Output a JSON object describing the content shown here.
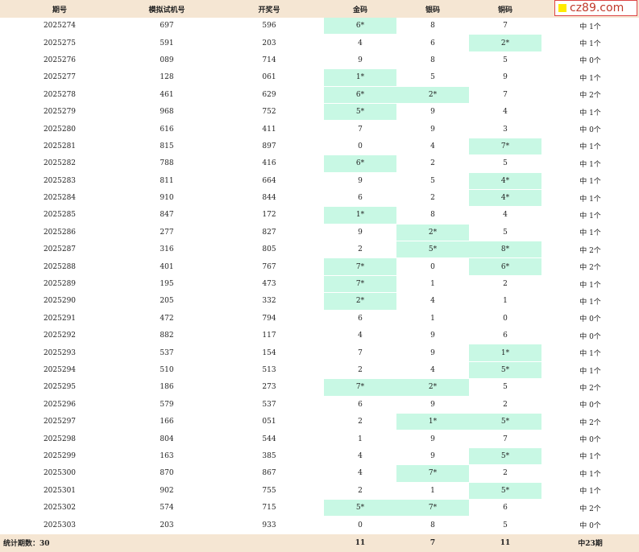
{
  "headers": [
    "期号",
    "模拟试机号",
    "开奖号",
    "金码",
    "银码",
    "铜码",
    ""
  ],
  "rows": [
    {
      "issue": "2025274",
      "sim": "697",
      "draw": "596",
      "gold": "6*",
      "silver": "8",
      "copper": "7",
      "hits": "中 1个",
      "h": [
        1,
        0,
        0
      ]
    },
    {
      "issue": "2025275",
      "sim": "591",
      "draw": "203",
      "gold": "4",
      "silver": "6",
      "copper": "2*",
      "hits": "中 1个",
      "h": [
        0,
        0,
        1
      ]
    },
    {
      "issue": "2025276",
      "sim": "089",
      "draw": "714",
      "gold": "9",
      "silver": "8",
      "copper": "5",
      "hits": "中 0个",
      "h": [
        0,
        0,
        0
      ]
    },
    {
      "issue": "2025277",
      "sim": "128",
      "draw": "061",
      "gold": "1*",
      "silver": "5",
      "copper": "9",
      "hits": "中 1个",
      "h": [
        1,
        0,
        0
      ]
    },
    {
      "issue": "2025278",
      "sim": "461",
      "draw": "629",
      "gold": "6*",
      "silver": "2*",
      "copper": "7",
      "hits": "中 2个",
      "h": [
        1,
        1,
        0
      ]
    },
    {
      "issue": "2025279",
      "sim": "968",
      "draw": "752",
      "gold": "5*",
      "silver": "9",
      "copper": "4",
      "hits": "中 1个",
      "h": [
        1,
        0,
        0
      ]
    },
    {
      "issue": "2025280",
      "sim": "616",
      "draw": "411",
      "gold": "7",
      "silver": "9",
      "copper": "3",
      "hits": "中 0个",
      "h": [
        0,
        0,
        0
      ]
    },
    {
      "issue": "2025281",
      "sim": "815",
      "draw": "897",
      "gold": "0",
      "silver": "4",
      "copper": "7*",
      "hits": "中 1个",
      "h": [
        0,
        0,
        1
      ]
    },
    {
      "issue": "2025282",
      "sim": "788",
      "draw": "416",
      "gold": "6*",
      "silver": "2",
      "copper": "5",
      "hits": "中 1个",
      "h": [
        1,
        0,
        0
      ]
    },
    {
      "issue": "2025283",
      "sim": "811",
      "draw": "664",
      "gold": "9",
      "silver": "5",
      "copper": "4*",
      "hits": "中 1个",
      "h": [
        0,
        0,
        1
      ]
    },
    {
      "issue": "2025284",
      "sim": "910",
      "draw": "844",
      "gold": "6",
      "silver": "2",
      "copper": "4*",
      "hits": "中 1个",
      "h": [
        0,
        0,
        1
      ]
    },
    {
      "issue": "2025285",
      "sim": "847",
      "draw": "172",
      "gold": "1*",
      "silver": "8",
      "copper": "4",
      "hits": "中 1个",
      "h": [
        1,
        0,
        0
      ]
    },
    {
      "issue": "2025286",
      "sim": "277",
      "draw": "827",
      "gold": "9",
      "silver": "2*",
      "copper": "5",
      "hits": "中 1个",
      "h": [
        0,
        1,
        0
      ]
    },
    {
      "issue": "2025287",
      "sim": "316",
      "draw": "805",
      "gold": "2",
      "silver": "5*",
      "copper": "8*",
      "hits": "中 2个",
      "h": [
        0,
        1,
        1
      ]
    },
    {
      "issue": "2025288",
      "sim": "401",
      "draw": "767",
      "gold": "7*",
      "silver": "0",
      "copper": "6*",
      "hits": "中 2个",
      "h": [
        1,
        0,
        1
      ]
    },
    {
      "issue": "2025289",
      "sim": "195",
      "draw": "473",
      "gold": "7*",
      "silver": "1",
      "copper": "2",
      "hits": "中 1个",
      "h": [
        1,
        0,
        0
      ]
    },
    {
      "issue": "2025290",
      "sim": "205",
      "draw": "332",
      "gold": "2*",
      "silver": "4",
      "copper": "1",
      "hits": "中 1个",
      "h": [
        1,
        0,
        0
      ]
    },
    {
      "issue": "2025291",
      "sim": "472",
      "draw": "794",
      "gold": "6",
      "silver": "1",
      "copper": "0",
      "hits": "中 0个",
      "h": [
        0,
        0,
        0
      ]
    },
    {
      "issue": "2025292",
      "sim": "882",
      "draw": "117",
      "gold": "4",
      "silver": "9",
      "copper": "6",
      "hits": "中 0个",
      "h": [
        0,
        0,
        0
      ]
    },
    {
      "issue": "2025293",
      "sim": "537",
      "draw": "154",
      "gold": "7",
      "silver": "9",
      "copper": "1*",
      "hits": "中 1个",
      "h": [
        0,
        0,
        1
      ]
    },
    {
      "issue": "2025294",
      "sim": "510",
      "draw": "513",
      "gold": "2",
      "silver": "4",
      "copper": "5*",
      "hits": "中 1个",
      "h": [
        0,
        0,
        1
      ]
    },
    {
      "issue": "2025295",
      "sim": "186",
      "draw": "273",
      "gold": "7*",
      "silver": "2*",
      "copper": "5",
      "hits": "中 2个",
      "h": [
        1,
        1,
        0
      ]
    },
    {
      "issue": "2025296",
      "sim": "579",
      "draw": "537",
      "gold": "6",
      "silver": "9",
      "copper": "2",
      "hits": "中 0个",
      "h": [
        0,
        0,
        0
      ]
    },
    {
      "issue": "2025297",
      "sim": "166",
      "draw": "051",
      "gold": "2",
      "silver": "1*",
      "copper": "5*",
      "hits": "中 2个",
      "h": [
        0,
        1,
        1
      ]
    },
    {
      "issue": "2025298",
      "sim": "804",
      "draw": "544",
      "gold": "1",
      "silver": "9",
      "copper": "7",
      "hits": "中 0个",
      "h": [
        0,
        0,
        0
      ]
    },
    {
      "issue": "2025299",
      "sim": "163",
      "draw": "385",
      "gold": "4",
      "silver": "9",
      "copper": "5*",
      "hits": "中 1个",
      "h": [
        0,
        0,
        1
      ]
    },
    {
      "issue": "2025300",
      "sim": "870",
      "draw": "867",
      "gold": "4",
      "silver": "7*",
      "copper": "2",
      "hits": "中 1个",
      "h": [
        0,
        1,
        0
      ]
    },
    {
      "issue": "2025301",
      "sim": "902",
      "draw": "755",
      "gold": "2",
      "silver": "1",
      "copper": "5*",
      "hits": "中 1个",
      "h": [
        0,
        0,
        1
      ]
    },
    {
      "issue": "2025302",
      "sim": "574",
      "draw": "715",
      "gold": "5*",
      "silver": "7*",
      "copper": "6",
      "hits": "中 2个",
      "h": [
        1,
        1,
        0
      ]
    },
    {
      "issue": "2025303",
      "sim": "203",
      "draw": "933",
      "gold": "0",
      "silver": "8",
      "copper": "5",
      "hits": "中 0个",
      "h": [
        0,
        0,
        0
      ]
    }
  ],
  "footer": {
    "label": "统计期数：30",
    "gold": "11",
    "silver": "7",
    "copper": "11",
    "total": "中23期"
  },
  "brand": {
    "text": "cz89.com"
  },
  "colors": {
    "header_bg": "#f5e6d3",
    "hit_bg": "#c8f8e4",
    "brand_text": "#c0392b",
    "brand_square": "#ffeb00"
  }
}
